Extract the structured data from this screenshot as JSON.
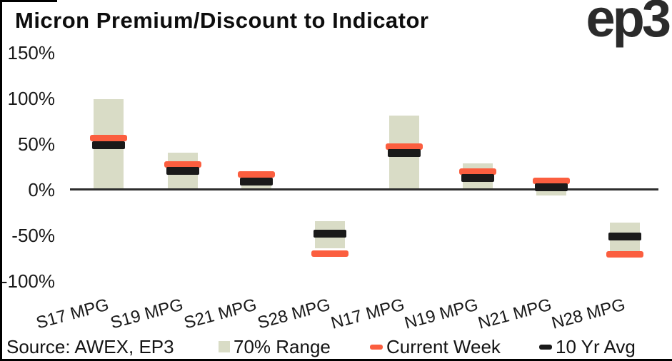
{
  "header": {
    "title": "Micron Premium/Discount to Indicator",
    "logo_text": "ep3"
  },
  "source_note": "Source: AWEX, EP3",
  "colors": {
    "range": "#d9dcc6",
    "current_week": "#fb5e3f",
    "ten_yr_avg": "#1a1a1a",
    "axis": "#2d2d2d",
    "text": "#141414",
    "background": "#ffffff",
    "border": "#000000"
  },
  "legend": [
    {
      "label": "70% Range",
      "swatch": "square",
      "color_key": "range"
    },
    {
      "label": "Current Week",
      "swatch": "dash",
      "color_key": "current_week"
    },
    {
      "label": "10 Yr Avg",
      "swatch": "dash",
      "color_key": "ten_yr_avg"
    }
  ],
  "chart_data": {
    "type": "bar",
    "subtype": "range-bars-with-week-and-average-markers",
    "title": "Micron Premium/Discount to Indicator",
    "categories": [
      "S17 MPG",
      "S19 MPG",
      "S21 MPG",
      "S28 MPG",
      "N17 MPG",
      "N19 MPG",
      "N21 MPG",
      "N28 MPG"
    ],
    "series": [
      {
        "name": "70% Range",
        "render": "bar",
        "color": "#d9dcc6",
        "ranges_pct": [
          [
            0,
            99
          ],
          [
            0,
            41
          ],
          [
            0,
            13
          ],
          [
            -64,
            -34
          ],
          [
            0,
            81
          ],
          [
            0,
            29
          ],
          [
            -6,
            6
          ],
          [
            -68,
            -36
          ]
        ]
      },
      {
        "name": "Current Week",
        "render": "tick",
        "color": "#fb5e3f",
        "values_pct": [
          57,
          28,
          17,
          -70,
          47,
          20,
          10,
          -71
        ]
      },
      {
        "name": "10 Yr Avg",
        "render": "tick",
        "color": "#1a1a1a",
        "values_pct": [
          49,
          21,
          9,
          -48,
          40,
          13,
          3,
          -51
        ]
      }
    ],
    "yticks": [
      {
        "label": "150%",
        "value": 150
      },
      {
        "label": "100%",
        "value": 100
      },
      {
        "label": "50%",
        "value": 50
      },
      {
        "label": "0%",
        "value": 0
      },
      {
        "label": "-50%",
        "value": -50
      },
      {
        "label": "-100%",
        "value": -100
      }
    ],
    "ylim": [
      -100,
      150
    ],
    "xlabel": "",
    "ylabel": "",
    "grid": false,
    "legend_position": "bottom"
  }
}
